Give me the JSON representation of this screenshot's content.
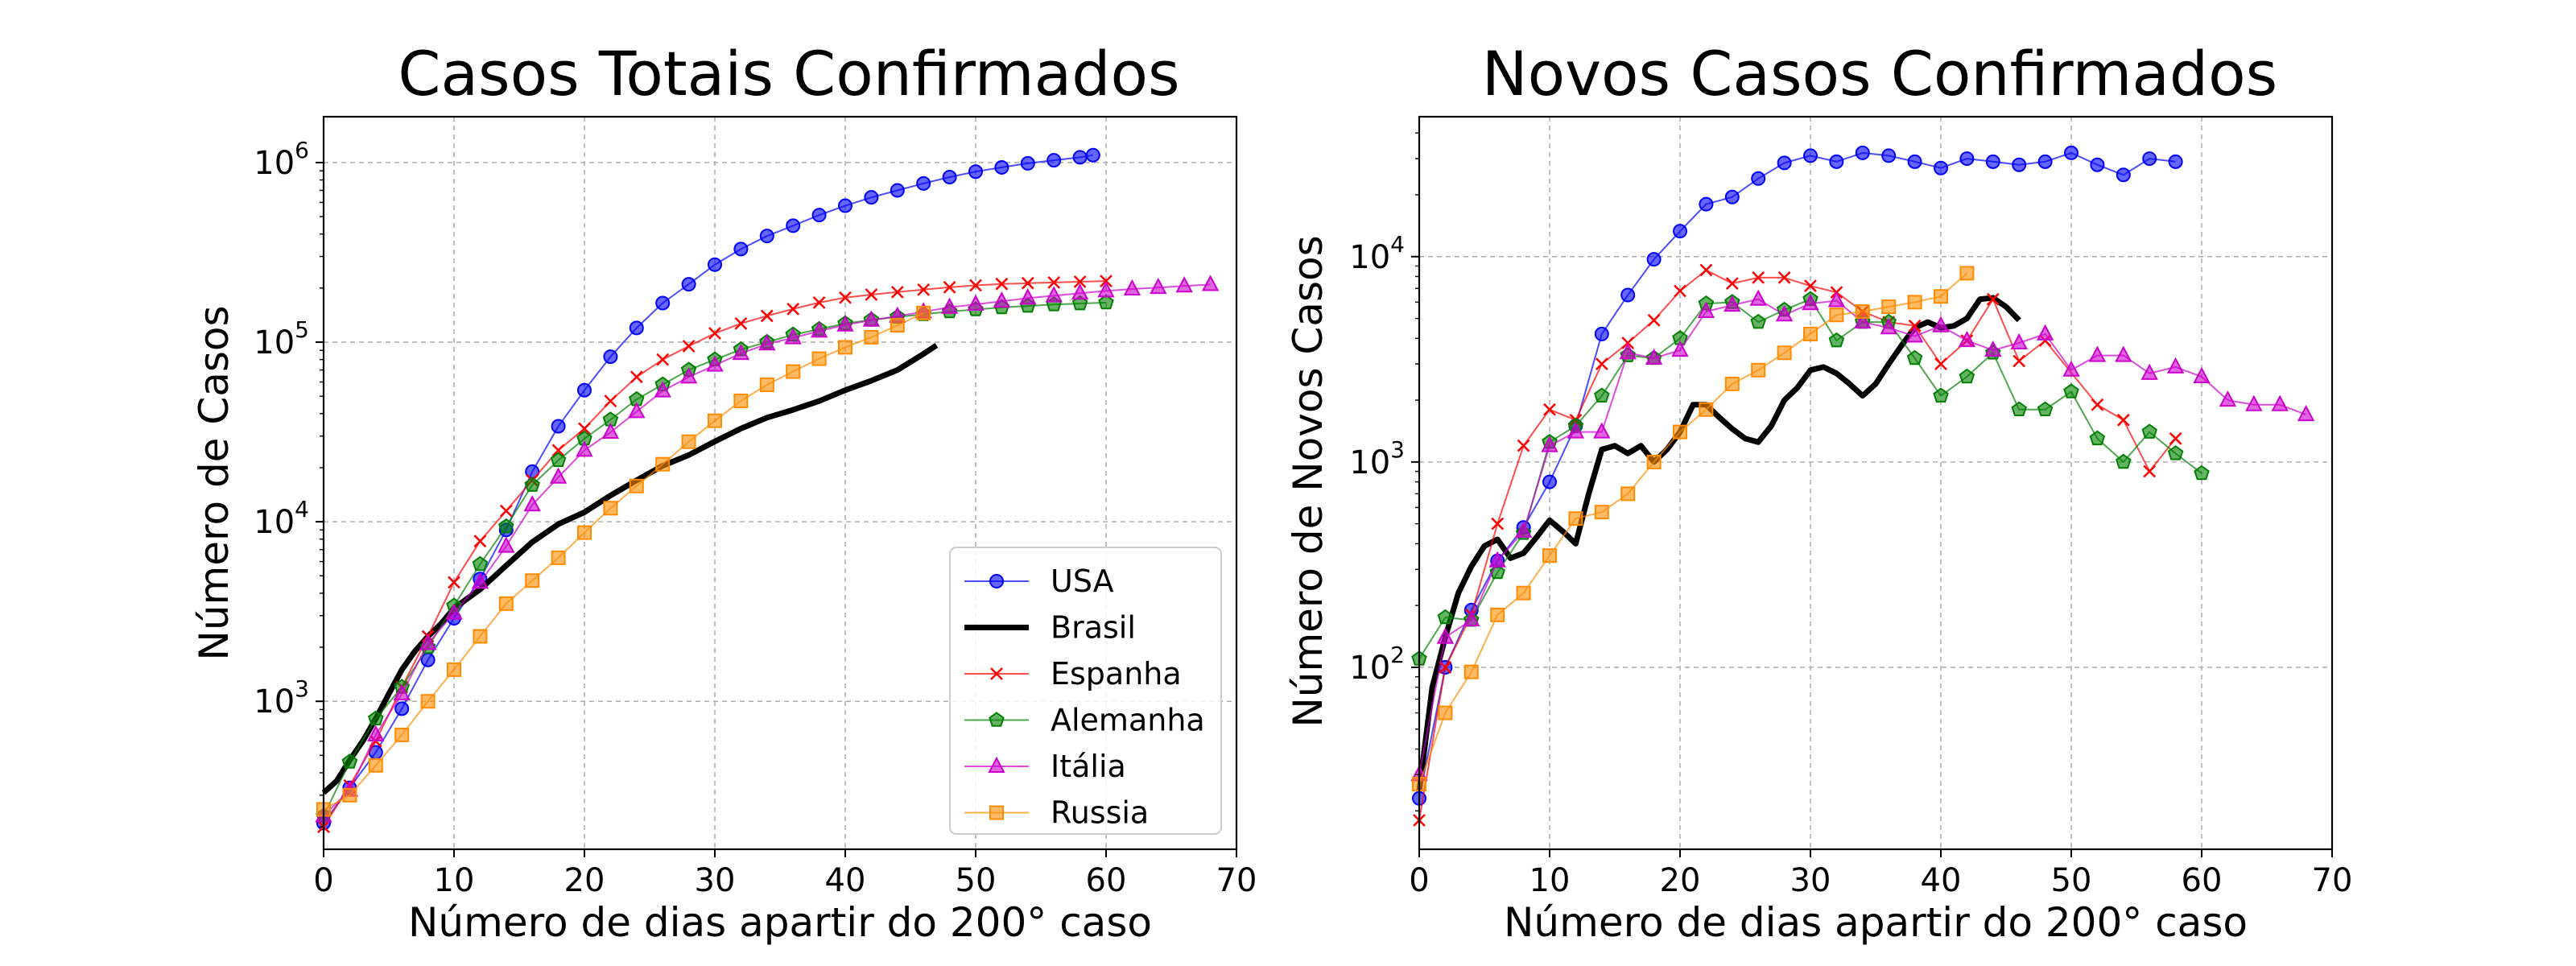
{
  "chart_data": [
    {
      "type": "line",
      "title": "Casos Totais Confirmados",
      "xlabel": "Número de dias apartir do 200° caso",
      "ylabel": "Número de Casos",
      "xlim": [
        0,
        70
      ],
      "ylim": [
        150,
        1800000
      ],
      "yscale": "log",
      "grid": true,
      "legend_location": "lower-right",
      "x_ticks": [
        "0",
        "10",
        "20",
        "30",
        "40",
        "50",
        "60",
        "70"
      ],
      "y_ticks": [
        {
          "base": "10",
          "exp": "3",
          "value": 1000
        },
        {
          "base": "10",
          "exp": "4",
          "value": 10000
        },
        {
          "base": "10",
          "exp": "5",
          "value": 100000
        },
        {
          "base": "10",
          "exp": "6",
          "value": 1000000
        }
      ],
      "series": [
        {
          "name": "USA",
          "color": "#0000ff",
          "marker": "circle",
          "x": [
            0,
            2,
            4,
            6,
            8,
            10,
            12,
            14,
            16,
            18,
            20,
            22,
            24,
            26,
            28,
            30,
            32,
            34,
            36,
            38,
            40,
            42,
            44,
            46,
            48,
            50,
            52,
            54,
            56,
            58,
            59
          ],
          "y": [
            210,
            330,
            520,
            910,
            1700,
            2900,
            4800,
            9000,
            19000,
            34000,
            54000,
            83000,
            120000,
            165000,
            210000,
            270000,
            330000,
            390000,
            445000,
            510000,
            575000,
            640000,
            700000,
            765000,
            830000,
            890000,
            940000,
            990000,
            1030000,
            1070000,
            1100000
          ]
        },
        {
          "name": "Brasil",
          "color": "#000000",
          "marker": "none",
          "x": [
            0,
            1,
            2,
            3,
            4,
            5,
            6,
            7,
            8,
            9,
            10,
            12,
            14,
            16,
            18,
            20,
            22,
            24,
            26,
            28,
            30,
            32,
            34,
            36,
            38,
            40,
            42,
            44,
            46,
            47
          ],
          "y": [
            310,
            360,
            470,
            600,
            800,
            1100,
            1500,
            1900,
            2300,
            2700,
            3300,
            4200,
            5700,
            7700,
            9700,
            11300,
            14000,
            17000,
            20500,
            23500,
            28000,
            33000,
            38000,
            42000,
            47000,
            54000,
            61000,
            70000,
            86000,
            96000
          ]
        },
        {
          "name": "Espanha",
          "color": "#ff0000",
          "marker": "x",
          "x": [
            0,
            2,
            4,
            6,
            8,
            10,
            12,
            14,
            16,
            18,
            20,
            22,
            24,
            26,
            28,
            30,
            32,
            34,
            36,
            38,
            40,
            42,
            44,
            46,
            48,
            50,
            52,
            54,
            56,
            58,
            60
          ],
          "y": [
            200,
            340,
            600,
            1200,
            2300,
            4600,
            7800,
            11500,
            17000,
            25000,
            33000,
            47000,
            64000,
            80000,
            95000,
            112000,
            127000,
            140000,
            153000,
            166000,
            177000,
            184000,
            190000,
            196000,
            202000,
            207000,
            211000,
            213000,
            215000,
            217000,
            219000
          ]
        },
        {
          "name": "Alemanha",
          "color": "#008000",
          "marker": "pentagon",
          "x": [
            0,
            2,
            4,
            6,
            8,
            10,
            12,
            14,
            16,
            18,
            20,
            22,
            24,
            26,
            28,
            30,
            32,
            34,
            36,
            38,
            40,
            42,
            44,
            46,
            48,
            50,
            52,
            54,
            56,
            58,
            60
          ],
          "y": [
            230,
            460,
            800,
            1200,
            2000,
            3400,
            5800,
            9400,
            16000,
            22000,
            29000,
            37000,
            48000,
            58000,
            70000,
            80000,
            91000,
            100000,
            110000,
            118000,
            127000,
            133000,
            138000,
            143000,
            148000,
            152000,
            156000,
            159000,
            162000,
            164000,
            166000
          ]
        },
        {
          "name": "Itália",
          "color": "#cc00cc",
          "marker": "triangle",
          "x": [
            0,
            2,
            4,
            6,
            8,
            10,
            12,
            14,
            16,
            18,
            20,
            22,
            24,
            26,
            28,
            30,
            32,
            34,
            36,
            38,
            40,
            42,
            44,
            46,
            48,
            50,
            52,
            54,
            56,
            58,
            60,
            62,
            64,
            66,
            68
          ],
          "y": [
            230,
            320,
            650,
            1100,
            2100,
            3100,
            4600,
            7300,
            12400,
            17700,
            25000,
            31500,
            41000,
            53500,
            63900,
            74400,
            86500,
            97700,
            105800,
            115200,
            124600,
            132500,
            139400,
            147600,
            156400,
            162400,
            169000,
            175900,
            181200,
            187300,
            192900,
            197700,
            201500,
            205400,
            209300
          ]
        },
        {
          "name": "Russia",
          "color": "#ff8c00",
          "marker": "square",
          "x": [
            0,
            2,
            4,
            6,
            8,
            10,
            12,
            14,
            16,
            18,
            20,
            22,
            24,
            26,
            28,
            30,
            32,
            34,
            36,
            38,
            40,
            42,
            44,
            46
          ],
          "y": [
            250,
            300,
            440,
            650,
            1000,
            1500,
            2300,
            3500,
            4700,
            6300,
            8700,
            11900,
            15800,
            20900,
            27900,
            36500,
            47100,
            57900,
            68600,
            80900,
            93600,
            106500,
            124100,
            145300
          ]
        }
      ]
    },
    {
      "type": "line",
      "title": "Novos Casos Confirmados",
      "xlabel": "Número de dias apartir do 200° caso",
      "ylabel": "Número de Novos Casos",
      "xlim": [
        0,
        70
      ],
      "ylim": [
        13,
        48000
      ],
      "yscale": "log",
      "grid": true,
      "x_ticks": [
        "0",
        "10",
        "20",
        "30",
        "40",
        "50",
        "60",
        "70"
      ],
      "y_ticks": [
        {
          "base": "10",
          "exp": "2",
          "value": 100
        },
        {
          "base": "10",
          "exp": "3",
          "value": 1000
        },
        {
          "base": "10",
          "exp": "4",
          "value": 10000
        }
      ],
      "series": [
        {
          "name": "USA",
          "color": "#0000ff",
          "marker": "circle",
          "x": [
            0,
            2,
            4,
            6,
            8,
            10,
            12,
            14,
            16,
            18,
            20,
            22,
            24,
            26,
            28,
            30,
            32,
            34,
            36,
            38,
            40,
            42,
            44,
            46,
            48,
            50,
            52,
            54,
            56,
            58
          ],
          "y": [
            23,
            100,
            190,
            330,
            480,
            800,
            1500,
            4200,
            6500,
            9700,
            13300,
            18000,
            19500,
            24000,
            28600,
            31000,
            29000,
            32000,
            31000,
            29000,
            27000,
            30000,
            29000,
            28000,
            29000,
            32000,
            28000,
            25000,
            30000,
            29000
          ]
        },
        {
          "name": "Brasil",
          "color": "#000000",
          "marker": "none",
          "x": [
            0,
            1,
            2,
            3,
            4,
            5,
            6,
            7,
            8,
            9,
            10,
            11,
            12,
            13,
            14,
            15,
            16,
            17,
            18,
            19,
            20,
            21,
            22,
            23,
            24,
            25,
            26,
            27,
            28,
            29,
            30,
            31,
            32,
            33,
            34,
            35,
            36,
            37,
            38,
            39,
            40,
            41,
            42,
            43,
            44,
            45,
            46
          ],
          "y": [
            25,
            80,
            140,
            230,
            310,
            390,
            420,
            340,
            360,
            430,
            520,
            460,
            400,
            700,
            1150,
            1200,
            1100,
            1200,
            1000,
            1150,
            1400,
            1900,
            1900,
            1650,
            1450,
            1300,
            1250,
            1500,
            2000,
            2300,
            2800,
            2900,
            2700,
            2400,
            2100,
            2400,
            3000,
            3700,
            4500,
            4800,
            4500,
            4600,
            5000,
            6200,
            6300,
            5700,
            4900
          ]
        },
        {
          "name": "Espanha",
          "color": "#ff0000",
          "marker": "x",
          "x": [
            0,
            2,
            4,
            6,
            8,
            10,
            12,
            14,
            16,
            18,
            20,
            22,
            24,
            26,
            28,
            30,
            32,
            34,
            36,
            38,
            40,
            42,
            44,
            46,
            48,
            52,
            54,
            56,
            58
          ],
          "y": [
            18,
            100,
            180,
            500,
            1200,
            1800,
            1600,
            3000,
            3800,
            4900,
            6800,
            8600,
            7400,
            7900,
            7900,
            7200,
            6700,
            5400,
            4800,
            4600,
            3000,
            3900,
            6200,
            3100,
            3900,
            1900,
            1600,
            900,
            1300
          ]
        },
        {
          "name": "Alemanha",
          "color": "#008000",
          "marker": "pentagon",
          "x": [
            0,
            2,
            4,
            6,
            8,
            10,
            12,
            14,
            16,
            18,
            20,
            22,
            24,
            26,
            28,
            30,
            32,
            34,
            36,
            38,
            40,
            42,
            44,
            46,
            48,
            50,
            52,
            54,
            56,
            58,
            60
          ],
          "y": [
            110,
            175,
            170,
            290,
            450,
            1250,
            1500,
            2100,
            3300,
            3200,
            4000,
            5900,
            6000,
            4800,
            5500,
            6200,
            3900,
            4800,
            4800,
            3200,
            2100,
            2600,
            3400,
            1800,
            1800,
            2200,
            1300,
            1000,
            1400,
            1100,
            880
          ]
        },
        {
          "name": "Itália",
          "color": "#cc00cc",
          "marker": "triangle",
          "x": [
            0,
            2,
            4,
            6,
            8,
            10,
            12,
            14,
            16,
            18,
            20,
            22,
            24,
            26,
            28,
            30,
            32,
            34,
            36,
            38,
            40,
            42,
            44,
            46,
            48,
            50,
            52,
            54,
            56,
            58,
            60,
            62,
            64,
            66,
            68
          ],
          "y": [
            30,
            140,
            170,
            330,
            460,
            1200,
            1400,
            1400,
            3400,
            3200,
            3500,
            5400,
            5800,
            6200,
            5200,
            5900,
            6100,
            4800,
            4500,
            4100,
            4600,
            3900,
            3500,
            3800,
            4200,
            2800,
            3300,
            3300,
            2700,
            2900,
            2600,
            2000,
            1900,
            1900,
            1700
          ]
        },
        {
          "name": "Russia",
          "color": "#ff8c00",
          "marker": "square",
          "x": [
            0,
            2,
            4,
            6,
            8,
            10,
            12,
            14,
            16,
            18,
            20,
            22,
            24,
            26,
            28,
            30,
            32,
            34,
            36,
            38,
            40,
            42
          ],
          "y": [
            27,
            60,
            95,
            180,
            230,
            350,
            530,
            570,
            700,
            1000,
            1400,
            1800,
            2400,
            2800,
            3400,
            4200,
            5200,
            5400,
            5700,
            6000,
            6400,
            8300
          ]
        }
      ]
    }
  ]
}
